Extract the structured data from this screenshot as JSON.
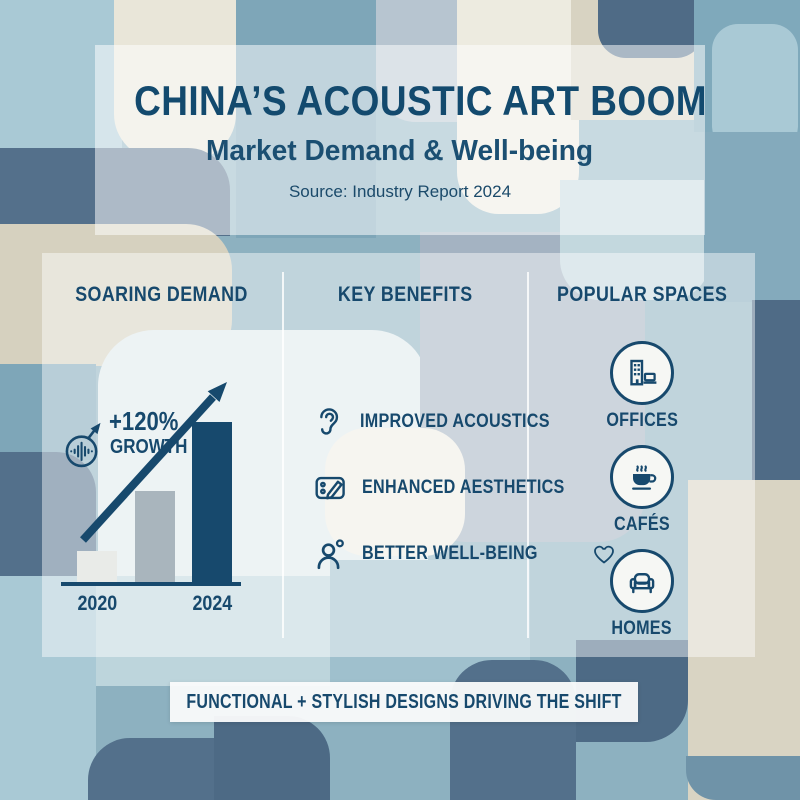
{
  "palette": {
    "accent_navy": "#17496d",
    "bar_light": "#e9ebe8",
    "bar_gray": "#a9b5bd",
    "bar_navy": "#17496d"
  },
  "header": {
    "title": "CHINA’S ACOUSTIC ART BOOM",
    "subtitle": "Market Demand & Well-being",
    "source": "Source: Industry Report 2024"
  },
  "sections": {
    "demand": {
      "heading": "SOARING DEMAND"
    },
    "benefits": {
      "heading": "KEY BENEFITS",
      "items": [
        {
          "icon": "ear-icon",
          "label": "IMPROVED ACOUSTICS"
        },
        {
          "icon": "sketchpad-icon",
          "label": "ENHANCED AESTHETICS"
        },
        {
          "icon": "person-wellness-icon",
          "label": "BETTER WELL-BEING",
          "suffix_icon": "heart-icon"
        }
      ]
    },
    "spaces": {
      "heading": "POPULAR SPACES",
      "items": [
        {
          "icon": "office-building-laptop-icon",
          "label": "OFFICES"
        },
        {
          "icon": "coffee-cup-icon",
          "label": "CAFÉS"
        },
        {
          "icon": "armchair-icon",
          "label": "HOMES"
        }
      ]
    }
  },
  "footer": {
    "banner": "FUNCTIONAL + STYLISH DESIGNS DRIVING THE SHIFT"
  },
  "chart_data": {
    "type": "bar",
    "title": "SOARING DEMAND",
    "categories": [
      "2020",
      "",
      "2024"
    ],
    "values": [
      31,
      91,
      160
    ],
    "ylim": [
      0,
      170
    ],
    "bar_colors": [
      "#e9ebe8",
      "#a9b5bd",
      "#17496d"
    ],
    "x_labeled_categories": [
      "2020",
      "2024"
    ],
    "annotation_lines": [
      "+120%",
      "GROWTH"
    ],
    "annotation": "+120% GROWTH",
    "trend_arrow": true,
    "notes": "stylized index bars, unlabeled y-axis; middle bar unlabeled"
  }
}
